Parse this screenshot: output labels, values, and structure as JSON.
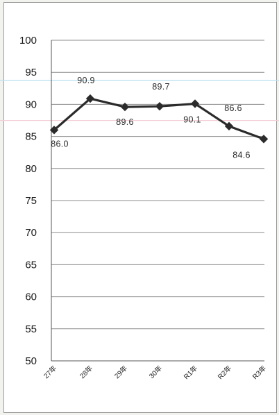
{
  "chart_data": {
    "type": "line",
    "categories": [
      "27年",
      "28年",
      "29年",
      "30年",
      "R1年",
      "R2年",
      "R3年"
    ],
    "values": [
      86.0,
      90.9,
      89.6,
      89.7,
      90.1,
      86.6,
      84.6
    ],
    "data_labels": [
      "86.0",
      "90.9",
      "89.6",
      "89.7",
      "90.1",
      "86.6",
      "84.6"
    ],
    "ylim": [
      50,
      100
    ],
    "yticks": [
      100,
      95,
      90,
      85,
      80,
      75,
      70,
      65,
      60,
      55,
      50
    ],
    "title": "",
    "xlabel": "",
    "ylabel": "",
    "grid": true,
    "marker": "diamond",
    "colors": {
      "line": "#2b2b2b",
      "marker": "#2b2b2b",
      "grid": "#8c8c8c",
      "axis": "#555555",
      "band_blue": "#bfe3f0",
      "band_pink": "#f3cfd6"
    }
  }
}
